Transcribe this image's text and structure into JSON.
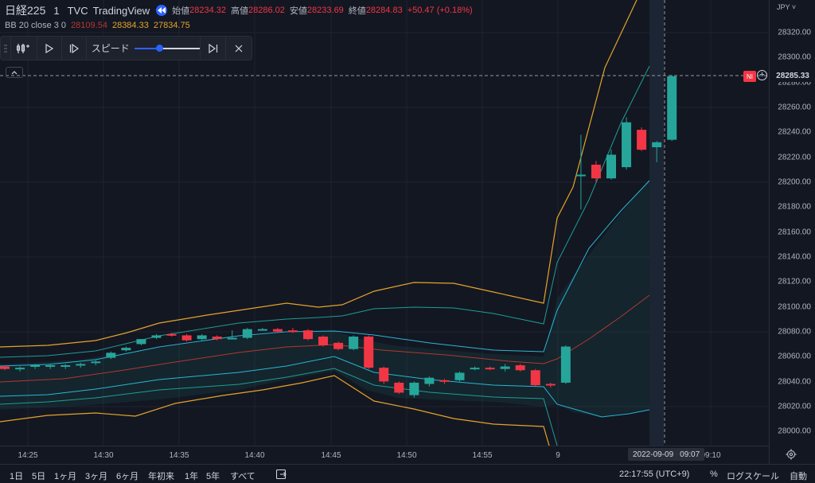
{
  "symbol": {
    "name": "日経225",
    "interval": "1",
    "source": "TVC",
    "platform": "TradingView",
    "ohlc": [
      {
        "label": "始値",
        "value": "28234.32"
      },
      {
        "label": "高値",
        "value": "28286.02"
      },
      {
        "label": "安値",
        "value": "28233.69"
      },
      {
        "label": "終値",
        "value": "28284.83"
      }
    ],
    "change": "+50.47 (+0.18%)"
  },
  "indicator": {
    "name": "BB 20 close 3 0",
    "values": [
      "28109.54",
      "28384.33",
      "27834.75"
    ]
  },
  "replay": {
    "speed_label": "スピード",
    "speed_level": 0.38
  },
  "price_axis": {
    "currency": "JPY",
    "ticks": [
      "28320.00",
      "28300.00",
      "28280.00",
      "28260.00",
      "28240.00",
      "28220.00",
      "28200.00",
      "28180.00",
      "28160.00",
      "28140.00",
      "28120.00",
      "28100.00",
      "28080.00",
      "28060.00",
      "28040.00",
      "28020.00",
      "28000.00"
    ],
    "current_price": "28285.33",
    "badge": "NI"
  },
  "time_axis": {
    "ticks": [
      "14:25",
      "14:30",
      "14:35",
      "14:40",
      "14:45",
      "14:50",
      "14:55",
      "9",
      "09:10"
    ],
    "crosshair_date": "2022-09-09",
    "crosshair_time": "09:07"
  },
  "toolbar": {
    "ranges": [
      "1日",
      "5日",
      "1ヶ月",
      "3ヶ月",
      "6ヶ月",
      "年初来",
      "1年",
      "5年",
      "すべて"
    ],
    "clock": "22:17:55 (UTC+9)",
    "percent": "%",
    "log": "ログスケール",
    "auto": "自動"
  },
  "colors": {
    "up": "#26a69a",
    "down": "#f23645",
    "basis": "#b2382f",
    "outer": "#e3a42b",
    "inner": "#29b6d6",
    "mid": "#1e9e94"
  },
  "chart_data": {
    "type": "candlestick",
    "ylim": [
      27990,
      28335
    ],
    "candles": [
      {
        "o": 28052,
        "h": 28053,
        "l": 28049,
        "c": 28050
      },
      {
        "o": 28050,
        "h": 28052,
        "l": 28048,
        "c": 28051
      },
      {
        "o": 28052,
        "h": 28054,
        "l": 28050,
        "c": 28053
      },
      {
        "o": 28052,
        "h": 28054,
        "l": 28050,
        "c": 28053
      },
      {
        "o": 28052,
        "h": 28054,
        "l": 28050,
        "c": 28053
      },
      {
        "o": 28053,
        "h": 28055,
        "l": 28051,
        "c": 28054
      },
      {
        "o": 28055,
        "h": 28057,
        "l": 28053,
        "c": 28056
      },
      {
        "o": 28059,
        "h": 28064,
        "l": 28058,
        "c": 28063
      },
      {
        "o": 28065,
        "h": 28068,
        "l": 28064,
        "c": 28067
      },
      {
        "o": 28070,
        "h": 28074,
        "l": 28069,
        "c": 28074
      },
      {
        "o": 28075,
        "h": 28078,
        "l": 28074,
        "c": 28077
      },
      {
        "o": 28078,
        "h": 28079,
        "l": 28076,
        "c": 28077
      },
      {
        "o": 28077,
        "h": 28078,
        "l": 28072,
        "c": 28073
      },
      {
        "o": 28074,
        "h": 28078,
        "l": 28073,
        "c": 28077
      },
      {
        "o": 28076,
        "h": 28077,
        "l": 28073,
        "c": 28074
      },
      {
        "o": 28075,
        "h": 28081,
        "l": 28074,
        "c": 28075
      },
      {
        "o": 28075,
        "h": 28083,
        "l": 28074,
        "c": 28082
      },
      {
        "o": 28082,
        "h": 28083,
        "l": 28081,
        "c": 28082
      },
      {
        "o": 28082,
        "h": 28083,
        "l": 28079,
        "c": 28080
      },
      {
        "o": 28081,
        "h": 28083,
        "l": 28079,
        "c": 28080
      },
      {
        "o": 28081,
        "h": 28082,
        "l": 28073,
        "c": 28074
      },
      {
        "o": 28076,
        "h": 28077,
        "l": 28068,
        "c": 28069
      },
      {
        "o": 28071,
        "h": 28072,
        "l": 28065,
        "c": 28066
      },
      {
        "o": 28066,
        "h": 28077,
        "l": 28065,
        "c": 28076
      },
      {
        "o": 28076,
        "h": 28077,
        "l": 28050,
        "c": 28051
      },
      {
        "o": 28051,
        "h": 28052,
        "l": 28038,
        "c": 28040
      },
      {
        "o": 28039,
        "h": 28040,
        "l": 28030,
        "c": 28031
      },
      {
        "o": 28029,
        "h": 28040,
        "l": 28027,
        "c": 28039
      },
      {
        "o": 28038,
        "h": 28044,
        "l": 28036,
        "c": 28043
      },
      {
        "o": 28041,
        "h": 28042,
        "l": 28038,
        "c": 28040
      },
      {
        "o": 28041,
        "h": 28048,
        "l": 28040,
        "c": 28047
      },
      {
        "o": 28050,
        "h": 28052,
        "l": 28049,
        "c": 28051
      },
      {
        "o": 28051,
        "h": 28052,
        "l": 28049,
        "c": 28050
      },
      {
        "o": 28050,
        "h": 28054,
        "l": 28048,
        "c": 28052
      },
      {
        "o": 28053,
        "h": 28054,
        "l": 28048,
        "c": 28049
      },
      {
        "o": 28049,
        "h": 28050,
        "l": 28036,
        "c": 28037
      },
      {
        "o": 28038,
        "h": 28039,
        "l": 28035,
        "c": 28037
      },
      {
        "o": 28039,
        "h": 28069,
        "l": 28038,
        "c": 28068
      },
      {
        "o": 28205,
        "h": 28238,
        "l": 28178,
        "c": 28206
      },
      {
        "o": 28214,
        "h": 28217,
        "l": 28200,
        "c": 28203
      },
      {
        "o": 28203,
        "h": 28226,
        "l": 28202,
        "c": 28222
      },
      {
        "o": 28212,
        "h": 28252,
        "l": 28210,
        "c": 28248
      },
      {
        "o": 28242,
        "h": 28244,
        "l": 28225,
        "c": 28226
      },
      {
        "o": 28228,
        "h": 28233,
        "l": 28216,
        "c": 28232
      },
      {
        "o": 28234,
        "h": 28286,
        "l": 28233,
        "c": 28285
      }
    ]
  }
}
